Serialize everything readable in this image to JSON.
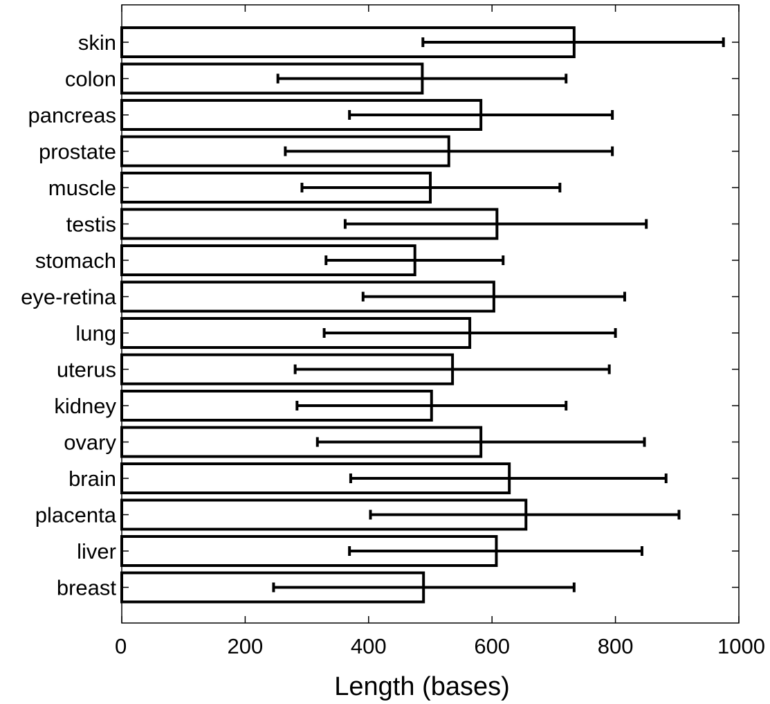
{
  "chart_data": {
    "type": "bar",
    "orientation": "horizontal",
    "title": "",
    "xlabel": "Length (bases)",
    "ylabel": "",
    "xlim": [
      0,
      1000
    ],
    "xticks": [
      "0",
      "200",
      "400",
      "600",
      "800",
      "1000"
    ],
    "grid": false,
    "legend": "none",
    "bar_fill": "#ffffff",
    "bar_edge": "#000000",
    "categories": [
      "skin",
      "colon",
      "pancreas",
      "prostate",
      "muscle",
      "testis",
      "stomach",
      "eye-retina",
      "lung",
      "uterus",
      "kidney",
      "ovary",
      "brain",
      "placenta",
      "liver",
      "breast"
    ],
    "values": [
      733,
      487,
      582,
      530,
      500,
      608,
      475,
      603,
      564,
      536,
      502,
      582,
      628,
      655,
      607,
      489
    ],
    "error_low": [
      488,
      253,
      369,
      265,
      292,
      362,
      331,
      391,
      328,
      281,
      284,
      317,
      371,
      403,
      369,
      246
    ],
    "error_high": [
      975,
      720,
      795,
      795,
      710,
      850,
      618,
      815,
      800,
      790,
      720,
      847,
      882,
      903,
      843,
      733
    ]
  }
}
